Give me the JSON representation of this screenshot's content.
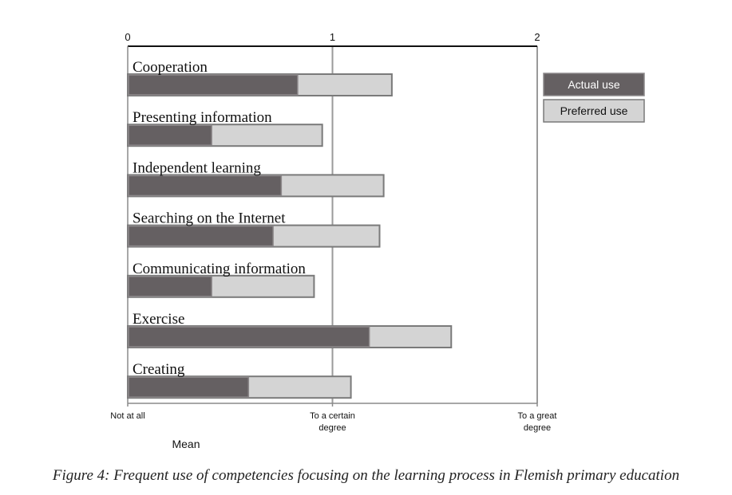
{
  "chart_data": {
    "type": "bar",
    "orientation": "horizontal",
    "categories": [
      "Cooperation",
      "Presenting information",
      "Independent learning",
      "Searching on the Internet",
      "Communicating information",
      "Exercise",
      "Creating"
    ],
    "series": [
      {
        "name": "Preferred use",
        "values": [
          1.29,
          0.95,
          1.25,
          1.23,
          0.91,
          1.58,
          1.09
        ],
        "color": "#d4d4d4"
      },
      {
        "name": "Actual use",
        "values": [
          0.83,
          0.41,
          0.75,
          0.71,
          0.41,
          1.18,
          0.59
        ],
        "color": "#656062"
      }
    ],
    "xlim": [
      0,
      2
    ],
    "top_ticks": [
      "0",
      "1",
      "2"
    ],
    "bottom_ticks": [
      {
        "value": 0,
        "lines": [
          "Not at all"
        ]
      },
      {
        "value": 1,
        "lines": [
          "To a certain",
          "degree"
        ]
      },
      {
        "value": 2,
        "lines": [
          "To a great",
          "degree"
        ]
      }
    ],
    "xlabel": "Mean",
    "legend": {
      "placement": "right",
      "items": [
        "Actual use",
        "Preferred use"
      ]
    },
    "grid": true
  },
  "caption": "Figure 4:  Frequent use of competencies focusing on the learning process in Flemish primary education"
}
